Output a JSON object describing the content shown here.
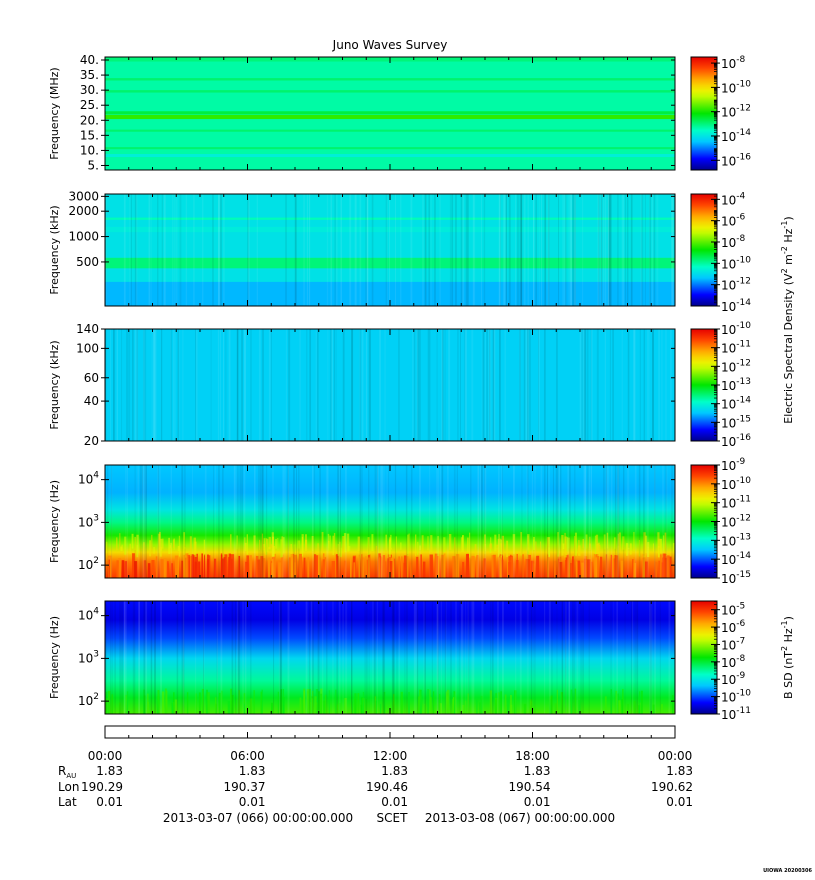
{
  "chart_data": {
    "type": "heatmap",
    "title": "Juno Waves Survey",
    "panels": [
      {
        "ylabel": "Frequency (MHz)",
        "yscale": "linear",
        "ylim": [
          3.5,
          41
        ],
        "yticks": [
          {
            "v": 40,
            "label": "40."
          },
          {
            "v": 35,
            "label": "35."
          },
          {
            "v": 30,
            "label": "30."
          },
          {
            "v": 25,
            "label": "25."
          },
          {
            "v": 20,
            "label": "20."
          },
          {
            "v": 15,
            "label": "15."
          },
          {
            "v": 10,
            "label": "10."
          },
          {
            "v": 5,
            "label": "5."
          }
        ],
        "colorbar": {
          "range_exp": [
            -16.8,
            -7.5
          ],
          "ticks": [
            {
              "exp": -8,
              "label": "-8"
            },
            {
              "exp": -10,
              "label": "-10"
            },
            {
              "exp": -12,
              "label": "-12"
            },
            {
              "exp": -14,
              "label": "-14"
            },
            {
              "exp": -16,
              "label": "-16"
            }
          ],
          "label": ""
        },
        "background_exp": -13.3,
        "bands": [
          {
            "y": [
              39.5,
              41
            ],
            "exp": -13.0
          },
          {
            "y": [
              33.2,
              34.0
            ],
            "exp": -12.9
          },
          {
            "y": [
              29.2,
              30.0
            ],
            "exp": -12.9
          },
          {
            "y": [
              22.0,
              23.0
            ],
            "exp": -12.6
          },
          {
            "y": [
              20.4,
              21.8
            ],
            "exp": -11.8
          },
          {
            "y": [
              16.2,
              16.9
            ],
            "exp": -12.9
          },
          {
            "y": [
              10.4,
              11.1
            ],
            "exp": -12.9
          },
          {
            "y": [
              7.8,
              8.8
            ],
            "exp": -13.8
          }
        ],
        "streaks": false
      },
      {
        "ylabel": "Frequency (kHz)",
        "yscale": "log",
        "ylim": [
          150,
          3200
        ],
        "yticks": [
          {
            "v": 3000,
            "label": "3000"
          },
          {
            "v": 2000,
            "label": "2000"
          },
          {
            "v": 1000,
            "label": "1000"
          },
          {
            "v": 500,
            "label": "500"
          }
        ],
        "colorbar": {
          "range_exp": [
            -14,
            -3.5
          ],
          "ticks": [
            {
              "exp": -4,
              "label": "-4"
            },
            {
              "exp": -6,
              "label": "-6"
            },
            {
              "exp": -8,
              "label": "-8"
            },
            {
              "exp": -10,
              "label": "-10"
            },
            {
              "exp": -12,
              "label": "-12"
            },
            {
              "exp": -14,
              "label": "-14"
            }
          ],
          "label": ""
        },
        "background_exp": -10.9,
        "bands": [
          {
            "y": [
              1580,
              1680
            ],
            "exp": -10.2
          },
          {
            "y": [
              1130,
              1300
            ],
            "exp": -10.7
          },
          {
            "y": [
              420,
              560
            ],
            "exp": -9.7
          },
          {
            "y": [
              150,
              290
            ],
            "exp": -11.5
          }
        ],
        "streaks": true
      },
      {
        "ylabel": "Frequency (kHz)",
        "yscale": "log",
        "ylim": [
          20,
          140
        ],
        "yticks": [
          {
            "v": 140,
            "label": "140"
          },
          {
            "v": 100,
            "label": "100"
          },
          {
            "v": 60,
            "label": "60"
          },
          {
            "v": 40,
            "label": "40"
          },
          {
            "v": 20,
            "label": "20"
          }
        ],
        "colorbar": {
          "range_exp": [
            -16,
            -10
          ],
          "ticks": [
            {
              "exp": -10,
              "label": "-10"
            },
            {
              "exp": -11,
              "label": "-11"
            },
            {
              "exp": -12,
              "label": "-12"
            },
            {
              "exp": -13,
              "label": "-13"
            },
            {
              "exp": -14,
              "label": "-14"
            },
            {
              "exp": -15,
              "label": "-15"
            },
            {
              "exp": -16,
              "label": "-16"
            }
          ],
          "label": ""
        },
        "background_exp": -14.4,
        "bands": [],
        "streaks": true
      },
      {
        "ylabel": "Frequency (Hz)",
        "yscale": "log",
        "ylim": [
          50,
          22000
        ],
        "yticks": [
          {
            "v": 10000,
            "base": "10",
            "exp": "4"
          },
          {
            "v": 1000,
            "base": "10",
            "exp": "3"
          },
          {
            "v": 100,
            "base": "10",
            "exp": "2"
          }
        ],
        "colorbar": {
          "range_exp": [
            -15,
            -9
          ],
          "ticks": [
            {
              "exp": -9,
              "label": "-9"
            },
            {
              "exp": -10,
              "label": "-10"
            },
            {
              "exp": -11,
              "label": "-11"
            },
            {
              "exp": -12,
              "label": "-12"
            },
            {
              "exp": -13,
              "label": "-13"
            },
            {
              "exp": -14,
              "label": "-14"
            },
            {
              "exp": -15,
              "label": "-15"
            }
          ],
          "label": ""
        },
        "profile": [
          {
            "f": 50,
            "exp": -9.5
          },
          {
            "f": 120,
            "exp": -9.9
          },
          {
            "f": 200,
            "exp": -10.6
          },
          {
            "f": 300,
            "exp": -11.3
          },
          {
            "f": 500,
            "exp": -11.9
          },
          {
            "f": 1000,
            "exp": -12.6
          },
          {
            "f": 2000,
            "exp": -13.2
          },
          {
            "f": 5000,
            "exp": -13.6
          },
          {
            "f": 22000,
            "exp": -13.5
          }
        ],
        "streaks": true
      },
      {
        "ylabel": "Frequency (Hz)",
        "yscale": "log",
        "ylim": [
          50,
          22000
        ],
        "yticks": [
          {
            "v": 10000,
            "base": "10",
            "exp": "4"
          },
          {
            "v": 1000,
            "base": "10",
            "exp": "3"
          },
          {
            "v": 100,
            "base": "10",
            "exp": "2"
          }
        ],
        "colorbar": {
          "range_exp": [
            -11,
            -4.5
          ],
          "ticks": [
            {
              "exp": -5,
              "label": "-5"
            },
            {
              "exp": -6,
              "label": "-6"
            },
            {
              "exp": -7,
              "label": "-7"
            },
            {
              "exp": -8,
              "label": "-8"
            },
            {
              "exp": -9,
              "label": "-9"
            },
            {
              "exp": -10,
              "label": "-10"
            },
            {
              "exp": -11,
              "label": "-11"
            }
          ],
          "label": "B SD (nT",
          "label_sup1": "2",
          "label_mid": " Hz",
          "label_sup2": "-1",
          "label_end": ")"
        },
        "profile": [
          {
            "f": 50,
            "exp": -7.4
          },
          {
            "f": 120,
            "exp": -7.9
          },
          {
            "f": 300,
            "exp": -8.5
          },
          {
            "f": 1000,
            "exp": -9.2
          },
          {
            "f": 3000,
            "exp": -10.0
          },
          {
            "f": 8000,
            "exp": -10.5
          },
          {
            "f": 22000,
            "exp": -10.3
          }
        ],
        "streaks": true
      }
    ],
    "shared_cb_label": {
      "main": "Electric Spectral Density (V",
      "sup1": "2",
      "mid": " m",
      "sup2": "-2",
      "mid2": " Hz",
      "sup3": "-1",
      "end": ")"
    },
    "tick_base": "10",
    "xaxis": {
      "ticks": [
        "00:00",
        "06:00",
        "12:00",
        "18:00",
        "00:00"
      ]
    },
    "ephemeris": [
      {
        "label": "R",
        "sub": "AU",
        "values": [
          "1.83",
          "1.83",
          "1.83",
          "1.83",
          "1.83"
        ]
      },
      {
        "label": "Lon",
        "values": [
          "190.29",
          "190.37",
          "190.46",
          "190.54",
          "190.62"
        ]
      },
      {
        "label": "Lat",
        "values": [
          "0.01",
          "0.01",
          "0.01",
          "0.01",
          "0.01"
        ]
      }
    ],
    "footer": {
      "start": "2013-03-07 (066) 00:00:00.000",
      "mid": "SCET",
      "end": "2013-03-08 (067) 00:00:00.000"
    },
    "stamp": "UIOWA 20200306"
  }
}
